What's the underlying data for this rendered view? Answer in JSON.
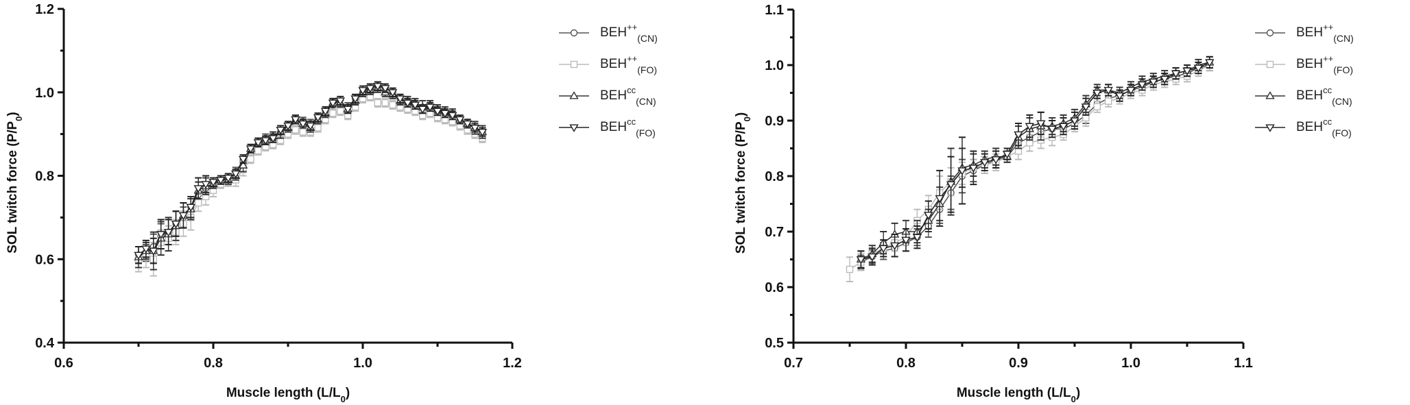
{
  "chart_data": [
    {
      "type": "line",
      "xlabel": {
        "main": "Muscle length (L/L",
        "sub": "0",
        "end": ")"
      },
      "ylabel": {
        "main": "SOL twitch force (P/P",
        "sub": "0",
        "end": ")"
      },
      "xlim": [
        0.6,
        1.2
      ],
      "ylim": [
        0.4,
        1.2
      ],
      "xticks": [
        "0.6",
        "0.8",
        "1.0",
        "1.2"
      ],
      "yticks": [
        "0.4",
        "0.6",
        "0.8",
        "1.0",
        "1.2"
      ],
      "grid": false,
      "legend_position": "right",
      "x": [
        0.7,
        0.71,
        0.72,
        0.73,
        0.74,
        0.75,
        0.76,
        0.77,
        0.78,
        0.79,
        0.8,
        0.81,
        0.82,
        0.83,
        0.84,
        0.85,
        0.86,
        0.87,
        0.88,
        0.89,
        0.9,
        0.91,
        0.92,
        0.93,
        0.94,
        0.95,
        0.96,
        0.97,
        0.98,
        0.99,
        1.0,
        1.01,
        1.02,
        1.03,
        1.04,
        1.05,
        1.06,
        1.07,
        1.08,
        1.09,
        1.1,
        1.11,
        1.12,
        1.13,
        1.14,
        1.15,
        1.16
      ],
      "series": [
        {
          "name": {
            "base": "BEH",
            "sup": "++",
            "sub": "(CN)"
          },
          "marker": "circle",
          "color": "#555555",
          "values": [
            0.61,
            0.615,
            0.63,
            0.655,
            0.665,
            0.685,
            0.7,
            0.725,
            0.755,
            0.77,
            0.78,
            0.785,
            0.795,
            0.81,
            0.835,
            0.855,
            0.875,
            0.89,
            0.89,
            0.905,
            0.92,
            0.925,
            0.93,
            0.925,
            0.94,
            0.955,
            0.97,
            0.97,
            0.965,
            0.985,
            1.0,
            1.01,
            1.015,
            1.01,
            1.0,
            0.985,
            0.975,
            0.965,
            0.955,
            0.96,
            0.955,
            0.95,
            0.94,
            0.925,
            0.915,
            0.91,
            0.905
          ],
          "error": [
            0.02,
            0.02,
            0.03,
            0.03,
            0.03,
            0.03,
            0.025,
            0.02,
            0.02,
            0.015,
            0.01,
            0.01,
            0.01,
            0.01,
            0.01,
            0.01,
            0.01,
            0.01,
            0.01,
            0.01,
            0.01,
            0.01,
            0.01,
            0.01,
            0.01,
            0.01,
            0.01,
            0.01,
            0.01,
            0.01,
            0.01,
            0.01,
            0.01,
            0.01,
            0.01,
            0.01,
            0.01,
            0.01,
            0.01,
            0.01,
            0.01,
            0.01,
            0.01,
            0.01,
            0.01,
            0.01,
            0.01
          ]
        },
        {
          "name": {
            "base": "BEH",
            "sup": "++",
            "sub": "(FO)"
          },
          "marker": "square",
          "color": "#bbbbbb",
          "values": [
            0.6,
            0.61,
            0.6,
            0.64,
            0.65,
            0.665,
            0.685,
            0.7,
            0.735,
            0.75,
            0.765,
            0.78,
            0.785,
            0.79,
            0.815,
            0.84,
            0.86,
            0.87,
            0.875,
            0.885,
            0.9,
            0.91,
            0.905,
            0.905,
            0.915,
            0.935,
            0.95,
            0.955,
            0.945,
            0.965,
            0.985,
            0.99,
            0.975,
            0.975,
            0.97,
            0.965,
            0.96,
            0.955,
            0.945,
            0.95,
            0.94,
            0.935,
            0.93,
            0.92,
            0.91,
            0.9,
            0.89
          ],
          "error": [
            0.03,
            0.03,
            0.04,
            0.03,
            0.03,
            0.03,
            0.03,
            0.03,
            0.02,
            0.02,
            0.015,
            0.01,
            0.01,
            0.015,
            0.015,
            0.01,
            0.01,
            0.01,
            0.01,
            0.01,
            0.01,
            0.01,
            0.01,
            0.01,
            0.01,
            0.01,
            0.01,
            0.01,
            0.01,
            0.01,
            0.01,
            0.01,
            0.01,
            0.01,
            0.01,
            0.01,
            0.01,
            0.01,
            0.01,
            0.01,
            0.01,
            0.01,
            0.01,
            0.01,
            0.01,
            0.01,
            0.01
          ]
        },
        {
          "name": {
            "base": "BEH",
            "sup": "cc",
            "sub": "(CN)"
          },
          "marker": "triangle-up",
          "color": "#333333",
          "values": [
            0.605,
            0.62,
            0.62,
            0.65,
            0.66,
            0.68,
            0.705,
            0.72,
            0.765,
            0.775,
            0.78,
            0.79,
            0.79,
            0.8,
            0.825,
            0.865,
            0.88,
            0.885,
            0.895,
            0.905,
            0.915,
            0.935,
            0.925,
            0.915,
            0.935,
            0.95,
            0.975,
            0.975,
            0.96,
            0.98,
            1.0,
            1.005,
            1.01,
            1.0,
            0.995,
            0.98,
            0.98,
            0.975,
            0.965,
            0.97,
            0.96,
            0.955,
            0.95,
            0.935,
            0.925,
            0.915,
            0.905
          ],
          "error": [
            0.025,
            0.02,
            0.045,
            0.04,
            0.04,
            0.035,
            0.03,
            0.025,
            0.02,
            0.02,
            0.01,
            0.01,
            0.01,
            0.01,
            0.015,
            0.01,
            0.01,
            0.01,
            0.01,
            0.015,
            0.01,
            0.01,
            0.01,
            0.01,
            0.01,
            0.01,
            0.01,
            0.01,
            0.01,
            0.01,
            0.01,
            0.01,
            0.01,
            0.01,
            0.01,
            0.01,
            0.01,
            0.01,
            0.015,
            0.01,
            0.01,
            0.01,
            0.01,
            0.01,
            0.01,
            0.015,
            0.015
          ]
        },
        {
          "name": {
            "base": "BEH",
            "sup": "cc",
            "sub": "(FO)"
          },
          "marker": "triangle-down",
          "color": "#222222",
          "values": [
            0.61,
            0.625,
            0.62,
            0.66,
            0.665,
            0.685,
            0.705,
            0.725,
            0.77,
            0.78,
            0.785,
            0.79,
            0.795,
            0.805,
            0.84,
            0.865,
            0.88,
            0.885,
            0.89,
            0.91,
            0.92,
            0.935,
            0.925,
            0.92,
            0.94,
            0.955,
            0.975,
            0.98,
            0.96,
            0.985,
            1.005,
            1.01,
            1.015,
            1.01,
            1.0,
            0.985,
            0.975,
            0.97,
            0.96,
            0.965,
            0.955,
            0.95,
            0.945,
            0.935,
            0.925,
            0.915,
            0.905
          ],
          "error": [
            0.02,
            0.02,
            0.03,
            0.035,
            0.03,
            0.03,
            0.03,
            0.025,
            0.025,
            0.02,
            0.01,
            0.01,
            0.01,
            0.01,
            0.01,
            0.01,
            0.01,
            0.01,
            0.01,
            0.01,
            0.01,
            0.01,
            0.01,
            0.01,
            0.01,
            0.01,
            0.01,
            0.01,
            0.01,
            0.01,
            0.01,
            0.01,
            0.01,
            0.01,
            0.01,
            0.01,
            0.01,
            0.01,
            0.01,
            0.01,
            0.01,
            0.01,
            0.01,
            0.01,
            0.01,
            0.01,
            0.01
          ]
        }
      ]
    },
    {
      "type": "line",
      "xlabel": {
        "main": "Muscle length (L/L",
        "sub": "0",
        "end": ")"
      },
      "ylabel": {
        "main": "SOL twitch force (P/P",
        "sub": "0",
        "end": ")"
      },
      "xlim": [
        0.7,
        1.1
      ],
      "ylim": [
        0.5,
        1.1
      ],
      "xticks": [
        "0.7",
        "0.8",
        "0.9",
        "1.0",
        "1.1"
      ],
      "yticks": [
        "0.5",
        "0.6",
        "0.7",
        "0.8",
        "0.9",
        "1.0",
        "1.1"
      ],
      "grid": false,
      "legend_position": "right",
      "x": [
        0.75,
        0.76,
        0.77,
        0.78,
        0.79,
        0.8,
        0.81,
        0.82,
        0.83,
        0.84,
        0.85,
        0.86,
        0.87,
        0.88,
        0.89,
        0.9,
        0.91,
        0.92,
        0.93,
        0.94,
        0.95,
        0.96,
        0.97,
        0.98,
        0.99,
        1.0,
        1.01,
        1.02,
        1.03,
        1.04,
        1.05,
        1.06,
        1.07
      ],
      "series": [
        {
          "name": {
            "base": "BEH",
            "sup": "++",
            "sub": "(CN)"
          },
          "marker": "circle",
          "color": "#555555",
          "values": [
            null,
            0.645,
            0.655,
            0.665,
            0.67,
            0.68,
            0.69,
            0.71,
            0.74,
            0.77,
            0.8,
            0.81,
            0.82,
            0.83,
            0.835,
            0.86,
            0.87,
            0.88,
            0.885,
            0.885,
            0.895,
            0.91,
            0.93,
            0.94,
            0.945,
            0.955,
            0.96,
            0.97,
            0.975,
            0.98,
            0.985,
            0.995,
            1.0
          ],
          "error": [
            null,
            0.012,
            0.012,
            0.015,
            0.015,
            0.015,
            0.015,
            0.02,
            0.025,
            0.03,
            0.03,
            0.02,
            0.015,
            0.015,
            0.01,
            0.015,
            0.015,
            0.015,
            0.015,
            0.01,
            0.01,
            0.015,
            0.01,
            0.01,
            0.01,
            0.01,
            0.01,
            0.01,
            0.01,
            0.01,
            0.01,
            0.01,
            0.01
          ]
        },
        {
          "name": {
            "base": "BEH",
            "sup": "++",
            "sub": "(FO)"
          },
          "marker": "square",
          "color": "#bbbbbb",
          "values": [
            0.632,
            0.645,
            0.66,
            0.67,
            0.68,
            0.69,
            0.72,
            0.74,
            0.77,
            0.79,
            0.805,
            0.815,
            0.82,
            0.825,
            0.835,
            0.845,
            0.86,
            0.865,
            0.87,
            0.875,
            0.89,
            0.905,
            0.925,
            0.935,
            0.94,
            0.95,
            0.955,
            0.965,
            0.97,
            0.975,
            0.98,
            0.99,
            1.0
          ],
          "error": [
            0.022,
            0.015,
            0.015,
            0.015,
            0.015,
            0.015,
            0.02,
            0.025,
            0.03,
            0.025,
            0.02,
            0.015,
            0.015,
            0.015,
            0.01,
            0.015,
            0.015,
            0.015,
            0.015,
            0.01,
            0.01,
            0.015,
            0.01,
            0.01,
            0.01,
            0.01,
            0.01,
            0.01,
            0.01,
            0.01,
            0.01,
            0.01,
            0.01
          ]
        },
        {
          "name": {
            "base": "BEH",
            "sup": "cc",
            "sub": "(CN)"
          },
          "marker": "triangle-up",
          "color": "#333333",
          "values": [
            null,
            0.65,
            0.66,
            0.68,
            0.695,
            0.7,
            0.7,
            0.72,
            0.75,
            0.79,
            0.815,
            0.82,
            0.83,
            0.835,
            0.835,
            0.87,
            0.885,
            0.89,
            0.89,
            0.895,
            0.905,
            0.93,
            0.955,
            0.955,
            0.95,
            0.96,
            0.97,
            0.975,
            0.98,
            0.985,
            0.99,
            1.0,
            1.005
          ],
          "error": [
            null,
            0.015,
            0.015,
            0.02,
            0.02,
            0.02,
            0.02,
            0.02,
            0.03,
            0.06,
            0.035,
            0.02,
            0.015,
            0.015,
            0.01,
            0.02,
            0.02,
            0.025,
            0.015,
            0.015,
            0.015,
            0.015,
            0.01,
            0.01,
            0.01,
            0.01,
            0.01,
            0.01,
            0.01,
            0.01,
            0.01,
            0.01,
            0.01
          ]
        },
        {
          "name": {
            "base": "BEH",
            "sup": "cc",
            "sub": "(FO)"
          },
          "marker": "triangle-down",
          "color": "#222222",
          "values": [
            null,
            0.65,
            0.655,
            0.67,
            0.675,
            0.685,
            0.69,
            0.73,
            0.76,
            0.785,
            0.81,
            0.815,
            0.825,
            0.83,
            0.84,
            0.875,
            0.89,
            0.895,
            0.885,
            0.89,
            0.9,
            0.925,
            0.95,
            0.955,
            0.945,
            0.955,
            0.965,
            0.97,
            0.975,
            0.985,
            0.99,
            0.995,
            1.005
          ],
          "error": [
            null,
            0.015,
            0.015,
            0.015,
            0.02,
            0.02,
            0.02,
            0.025,
            0.05,
            0.05,
            0.06,
            0.03,
            0.015,
            0.015,
            0.01,
            0.02,
            0.02,
            0.02,
            0.015,
            0.015,
            0.015,
            0.015,
            0.01,
            0.01,
            0.01,
            0.01,
            0.01,
            0.01,
            0.01,
            0.01,
            0.01,
            0.01,
            0.01
          ]
        }
      ]
    }
  ]
}
